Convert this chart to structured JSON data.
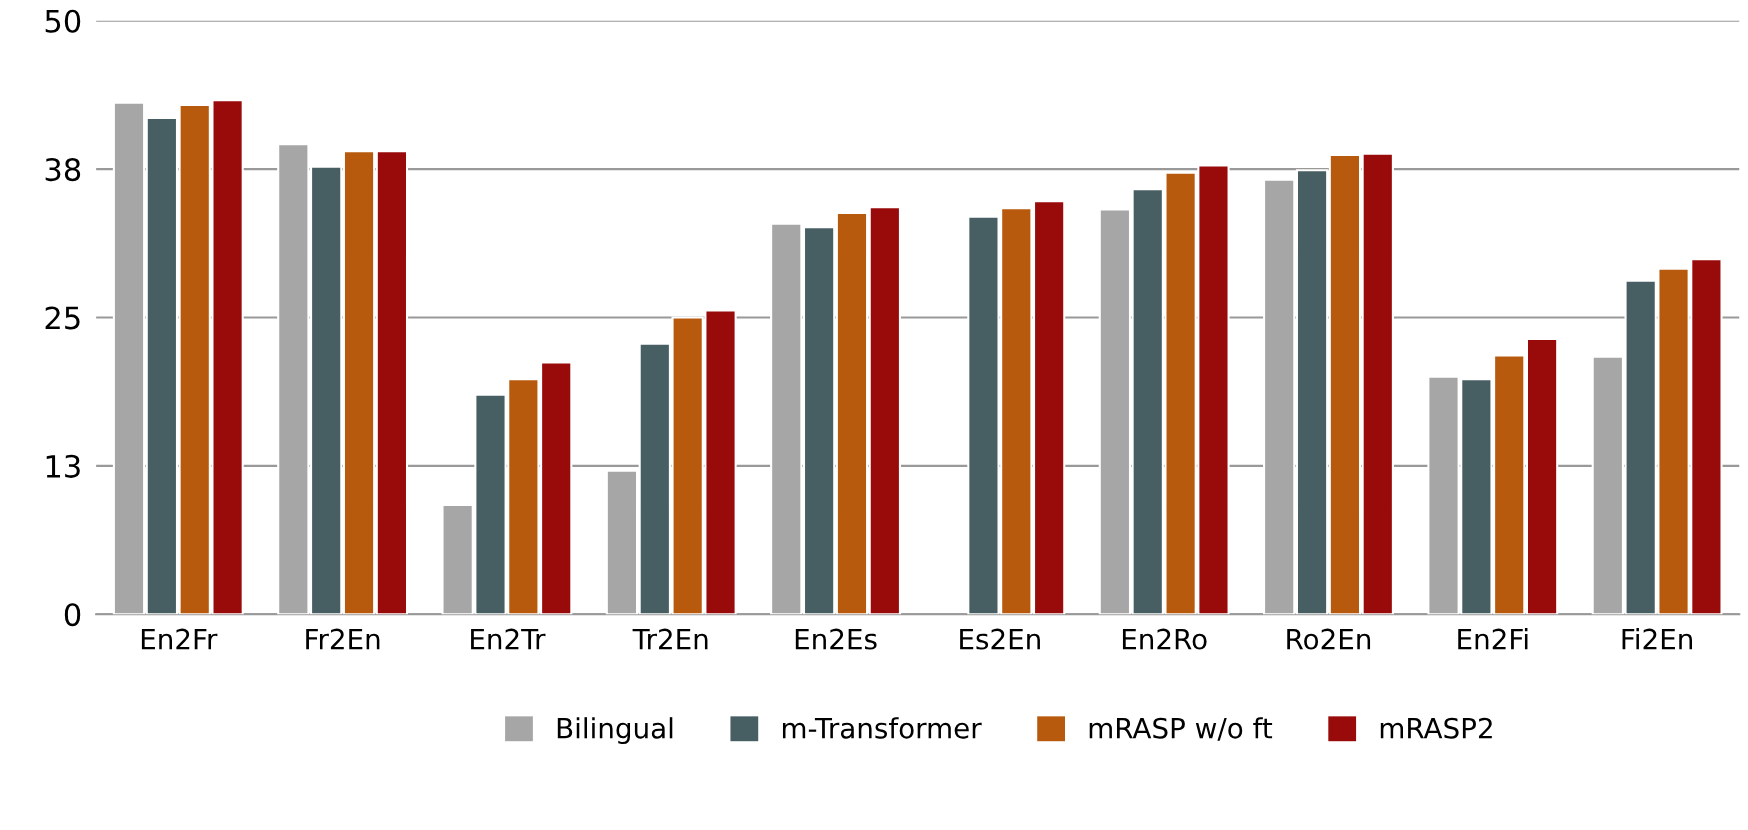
{
  "chart_data": {
    "type": "bar",
    "categories": [
      "En2Fr",
      "Fr2En",
      "En2Tr",
      "Tr2En",
      "En2Es",
      "Es2En",
      "En2Ro",
      "Ro2En",
      "En2Fi",
      "Fi2En"
    ],
    "series": [
      {
        "name": "Bilingual",
        "color": "#a6a6a6",
        "values": [
          43.1,
          39.6,
          9.2,
          12.1,
          32.9,
          null,
          34.1,
          36.6,
          20.0,
          21.7
        ]
      },
      {
        "name": "m-Transformer",
        "color": "#475f62",
        "values": [
          41.8,
          37.7,
          18.5,
          22.8,
          32.6,
          33.5,
          35.8,
          37.4,
          19.8,
          28.1
        ]
      },
      {
        "name": "mRASP w/o ft",
        "color": "#b85a0d",
        "values": [
          42.9,
          39.0,
          19.8,
          25.0,
          33.8,
          34.2,
          37.2,
          38.7,
          21.8,
          29.1
        ]
      },
      {
        "name": "mRASP2",
        "color": "#990a0a",
        "values": [
          43.3,
          39.0,
          21.2,
          25.6,
          34.3,
          34.8,
          37.8,
          38.8,
          23.2,
          29.9
        ]
      }
    ],
    "ylim": [
      0,
      50
    ],
    "yticks": [
      0,
      {
        "value": 12.5,
        "label": "13"
      },
      25,
      {
        "value": 37.5,
        "label": "38"
      },
      50
    ],
    "grid": "y",
    "legend": "bottom"
  }
}
